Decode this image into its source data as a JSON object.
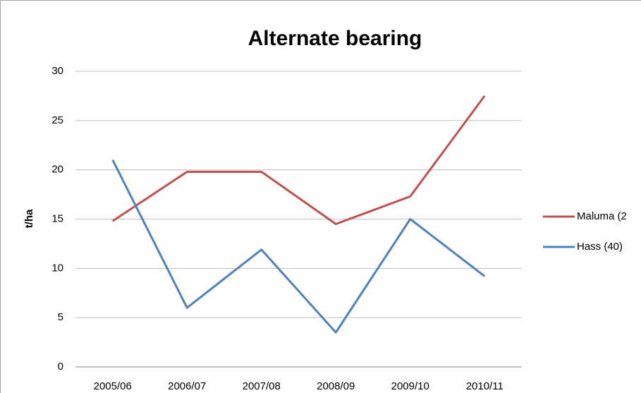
{
  "chart_data": {
    "type": "line",
    "title": "Alternate bearing",
    "y_label": "t/ha",
    "categories": [
      "2005/06",
      "2006/07",
      "2007/08",
      "2008/09",
      "2009/10",
      "2010/11"
    ],
    "series": [
      {
        "name": "Maluma (2",
        "color": "#c0504d",
        "values": [
          14.8,
          19.8,
          19.8,
          14.5,
          17.3,
          27.5
        ]
      },
      {
        "name": "Hass (40)",
        "color": "#4f81bd",
        "values": [
          21,
          6,
          11.9,
          3.5,
          15,
          9.2
        ]
      }
    ],
    "ylim": [
      0,
      30
    ],
    "yticks": [
      0,
      5,
      10,
      15,
      20,
      25,
      30
    ],
    "grid": true,
    "legend": "right"
  }
}
